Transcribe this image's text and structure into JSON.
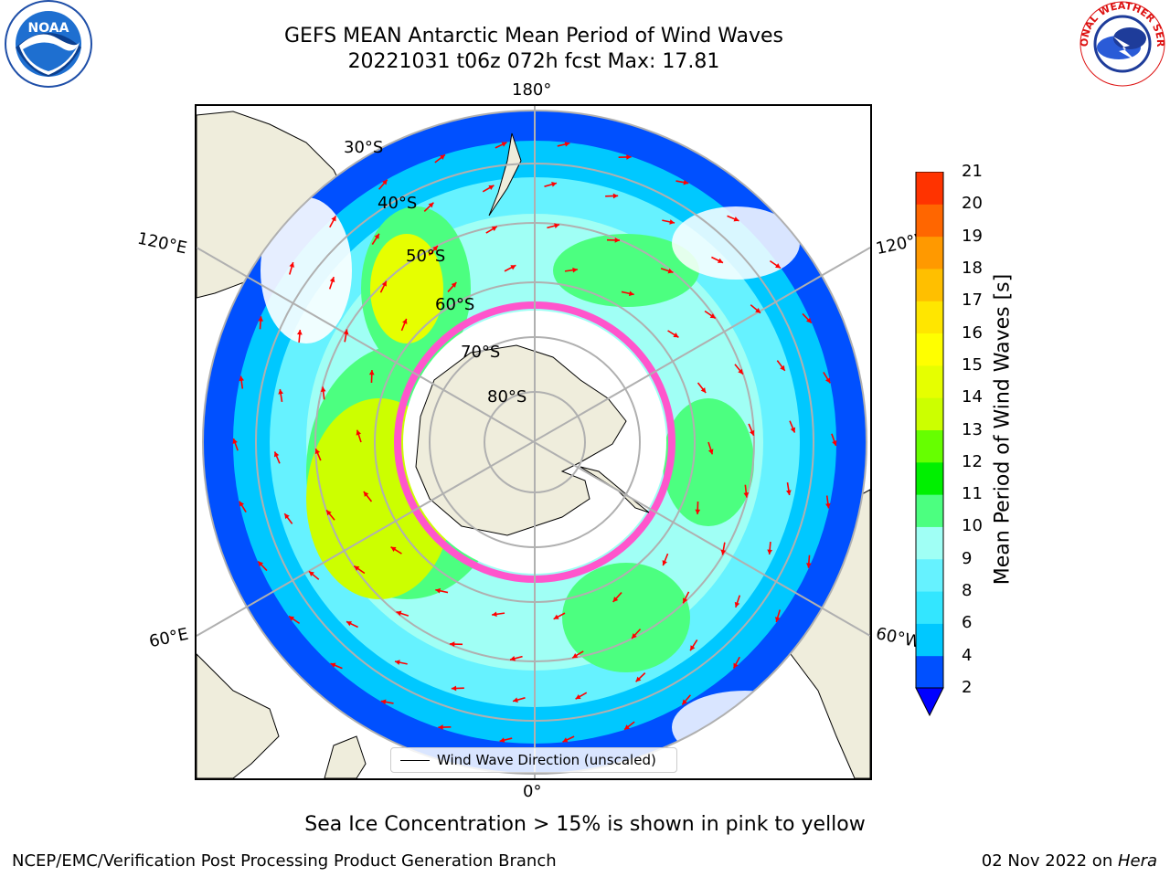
{
  "title": {
    "line1": "GEFS MEAN Antarctic Mean Period of Wind Waves",
    "line2": "20221031 t06z 072h fcst   Max: 17.81"
  },
  "logos": {
    "left": {
      "name": "NOAA",
      "ring_text": "NATIONAL OCEANIC AND ATMOSPHERIC ADMINISTRATION · U.S. DEPARTMENT OF COMMERCE"
    },
    "right": {
      "name": "National Weather Service",
      "ring_text": "NATIONAL WEATHER SERVICE"
    }
  },
  "map": {
    "projection": "south-polar-stereographic",
    "lon_labels": {
      "top": "180°",
      "bottom": "0°",
      "upper_left": "120°E",
      "upper_right": "120°W",
      "lower_left": "60°E",
      "lower_right": "60°W"
    },
    "lat_labels": [
      "30°S",
      "40°S",
      "50°S",
      "60°S",
      "70°S",
      "80°S"
    ],
    "legend": "Wind Wave Direction (unscaled)",
    "arrow_color": "#ff0000",
    "land_color": "#efeddc",
    "sea_ice_note": "Sea Ice Concentration > 15% is shown in pink to yellow"
  },
  "colorbar": {
    "label": "Mean Period of Wind Waves [s]",
    "ticks": [
      "2",
      "4",
      "6",
      "8",
      "9",
      "10",
      "11",
      "12",
      "13",
      "14",
      "15",
      "16",
      "17",
      "18",
      "19",
      "20",
      "21"
    ],
    "colors": [
      "#0050ff",
      "#00c8ff",
      "#33e6ff",
      "#66f2ff",
      "#a0fff5",
      "#4cff80",
      "#00f000",
      "#66ff00",
      "#ccff00",
      "#e6ff00",
      "#ffff00",
      "#ffe600",
      "#ffbf00",
      "#ff9900",
      "#ff6600",
      "#ff3300",
      "#ff0000"
    ],
    "extend_color": "#0000ff"
  },
  "footer": {
    "left": "NCEP/EMC/Verification Post Processing Product Generation Branch",
    "right_date": "02 Nov 2022 on ",
    "right_host": "Hera"
  }
}
